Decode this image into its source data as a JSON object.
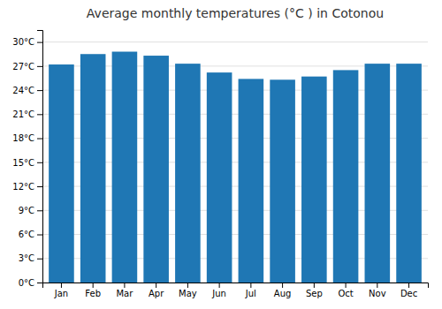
{
  "chart_data": {
    "type": "bar",
    "title": "Average monthly temperatures (°C ) in Cotonou",
    "categories": [
      "Jan",
      "Feb",
      "Mar",
      "Apr",
      "May",
      "Jun",
      "Jul",
      "Aug",
      "Sep",
      "Oct",
      "Nov",
      "Dec"
    ],
    "values": [
      27.2,
      28.5,
      28.8,
      28.3,
      27.3,
      26.2,
      25.4,
      25.3,
      25.7,
      26.5,
      27.3,
      27.3
    ],
    "ylim": [
      0,
      31.5
    ],
    "yticks": [
      {
        "value": 0,
        "label": "0°C"
      },
      {
        "value": 3,
        "label": "3°C"
      },
      {
        "value": 6,
        "label": "6°C"
      },
      {
        "value": 9,
        "label": "9°C"
      },
      {
        "value": 12,
        "label": "12°C"
      },
      {
        "value": 15,
        "label": "15°C"
      },
      {
        "value": 18,
        "label": "18°C"
      },
      {
        "value": 21,
        "label": "21°C"
      },
      {
        "value": 24,
        "label": "24°C"
      },
      {
        "value": 27,
        "label": "27°C"
      },
      {
        "value": 30,
        "label": "30°C"
      }
    ],
    "grid": true
  }
}
